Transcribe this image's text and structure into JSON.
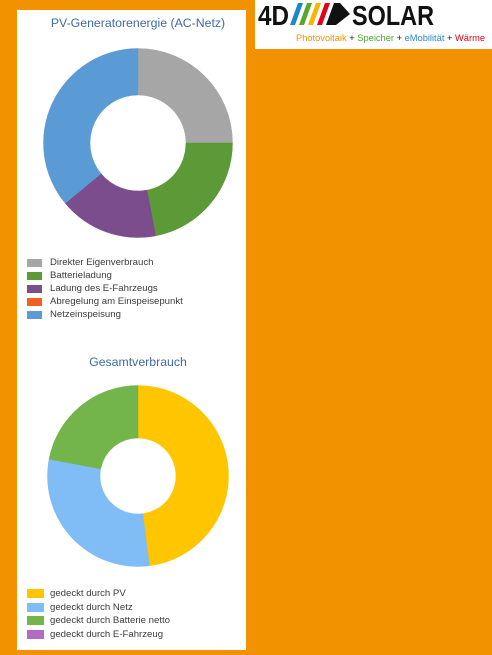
{
  "page": {
    "background_color": "#F39200",
    "panel_color": "#FFFFFF",
    "title_color": "#3E6BA5"
  },
  "logo": {
    "mark": "4D",
    "wordmark": "SOLAR",
    "stripe_colors": [
      "#1F86C9",
      "#5AA72F",
      "#F7B500",
      "#E3001B"
    ],
    "tagline": [
      {
        "text": "Photovoltaik",
        "color": "#F39200"
      },
      {
        "text": "+",
        "color": "#1D1D1B"
      },
      {
        "text": "Speicher",
        "color": "#4FA32E"
      },
      {
        "text": "+",
        "color": "#1D1D1B"
      },
      {
        "text": "eMobilität",
        "color": "#2D87CB"
      },
      {
        "text": "+",
        "color": "#1D1D1B"
      },
      {
        "text": "Wärme",
        "color": "#E2001A"
      }
    ]
  },
  "chart_data": [
    {
      "type": "pie",
      "donut": true,
      "title": "PV-Generatorenergie (AC-Netz)",
      "categories": [
        "Direkter Eigenverbrauch",
        "Batterieladung",
        "Ladung des E-Fahrzeugs",
        "Abregelung am Einspeisepunkt",
        "Netzeinspeisung"
      ],
      "values": [
        25,
        22,
        17,
        0,
        36
      ],
      "colors": [
        "#A6A6A6",
        "#5C9A38",
        "#7C4D8D",
        "#EE6122",
        "#5B9BD5"
      ],
      "legend": "bottom-left"
    },
    {
      "type": "pie",
      "donut": true,
      "title": "Gesamtverbrauch",
      "categories": [
        "gedeckt durch PV",
        "gedeckt durch Netz",
        "gedeckt durch Batterie netto",
        "gedeckt durch E-Fahrzeug"
      ],
      "values": [
        48,
        30,
        22,
        0
      ],
      "colors": [
        "#FFC600",
        "#80BCF5",
        "#73B44B",
        "#B26AC2"
      ],
      "legend": "bottom-left"
    }
  ]
}
